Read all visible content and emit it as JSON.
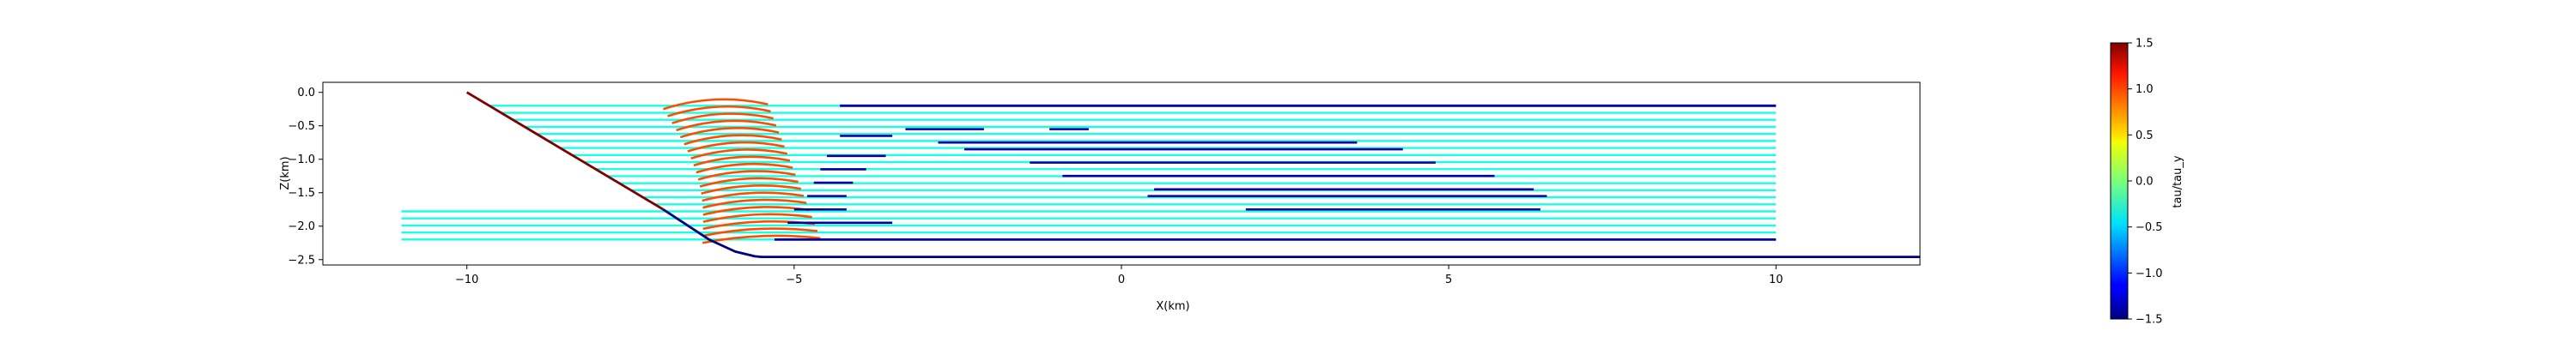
{
  "chart_data": {
    "type": "line",
    "xlabel": "X(km)",
    "ylabel": "Z(km)",
    "xlim": [
      -12.2,
      12.2
    ],
    "ylim": [
      -2.58,
      0.15
    ],
    "x_ticks": [
      -10,
      -5,
      0,
      5,
      10
    ],
    "x_tick_labels": [
      "−10",
      "−5",
      "0",
      "5",
      "10"
    ],
    "y_ticks": [
      0.0,
      -0.5,
      -1.0,
      -1.5,
      -2.0,
      -2.5
    ],
    "y_tick_labels": [
      "0.0",
      "−0.5",
      "−1.0",
      "−1.5",
      "−2.0",
      "−2.5"
    ],
    "grid": false,
    "colorbar": {
      "label": "tau/tau_y",
      "range": [
        -1.5,
        1.5
      ],
      "ticks": [
        1.5,
        1.0,
        0.5,
        0.0,
        -0.5,
        -1.0,
        -1.5
      ],
      "tick_labels": [
        "1.5",
        "1.0",
        "0.5",
        "0.0",
        "−0.5",
        "−1.0",
        "−1.5"
      ],
      "colormap": "jet"
    },
    "series": [
      {
        "role": "fault",
        "color_value": 1.5,
        "x": [
          -10.0,
          -7.0
        ],
        "y": [
          0.0,
          -1.75
        ]
      },
      {
        "role": "basal-boundary",
        "color_value": -1.5,
        "x": [
          -7.0,
          -6.3,
          -5.9,
          -5.6,
          -5.5,
          12.2
        ],
        "y": [
          -1.75,
          -2.2,
          -2.38,
          -2.45,
          -2.46,
          -2.46
        ]
      },
      {
        "role": "upper-boundary",
        "color_value": -1.4,
        "x": [
          -4.3,
          10.0
        ],
        "y": [
          -0.2,
          -0.2
        ]
      },
      {
        "role": "lower-boundary",
        "color_value": -1.4,
        "x": [
          -5.3,
          10.0
        ],
        "y": [
          -2.2,
          -2.2
        ]
      }
    ],
    "layer_count": 20,
    "layer_depth_range": [
      -0.2,
      -2.2
    ],
    "layer_x_range": [
      -11.0,
      10.0
    ],
    "layers_background_value": -0.3,
    "fold_region_value": 0.9,
    "fold_x_range": [
      -7.2,
      -4.3
    ],
    "detachment_patches": [
      {
        "z": -0.55,
        "x": [
          -3.3,
          -2.1
        ],
        "value": -1.4
      },
      {
        "z": -0.55,
        "x": [
          -1.1,
          -0.5
        ],
        "value": -1.4
      },
      {
        "z": -0.75,
        "x": [
          -2.8,
          3.6
        ],
        "value": -1.4
      },
      {
        "z": -0.85,
        "x": [
          -2.4,
          4.3
        ],
        "value": -1.4
      },
      {
        "z": -1.05,
        "x": [
          -1.4,
          4.8
        ],
        "value": -1.4
      },
      {
        "z": -1.25,
        "x": [
          -0.9,
          5.7
        ],
        "value": -1.4
      },
      {
        "z": -1.45,
        "x": [
          0.5,
          6.3
        ],
        "value": -1.4
      },
      {
        "z": -1.55,
        "x": [
          0.4,
          6.5
        ],
        "value": -1.4
      },
      {
        "z": -1.75,
        "x": [
          1.9,
          6.4
        ],
        "value": -1.4
      },
      {
        "z": -1.15,
        "x": [
          -4.6,
          -3.9
        ],
        "value": -1.4
      },
      {
        "z": -1.35,
        "x": [
          -4.7,
          -4.1
        ],
        "value": -1.4
      },
      {
        "z": -1.55,
        "x": [
          -4.8,
          -4.2
        ],
        "value": -1.4
      },
      {
        "z": -1.75,
        "x": [
          -5.0,
          -4.2
        ],
        "value": -1.4
      },
      {
        "z": -1.95,
        "x": [
          -5.1,
          -3.5
        ],
        "value": -1.4
      },
      {
        "z": -0.65,
        "x": [
          -4.3,
          -3.5
        ],
        "value": -1.4
      },
      {
        "z": -0.95,
        "x": [
          -4.5,
          -3.6
        ],
        "value": -1.4
      }
    ]
  }
}
